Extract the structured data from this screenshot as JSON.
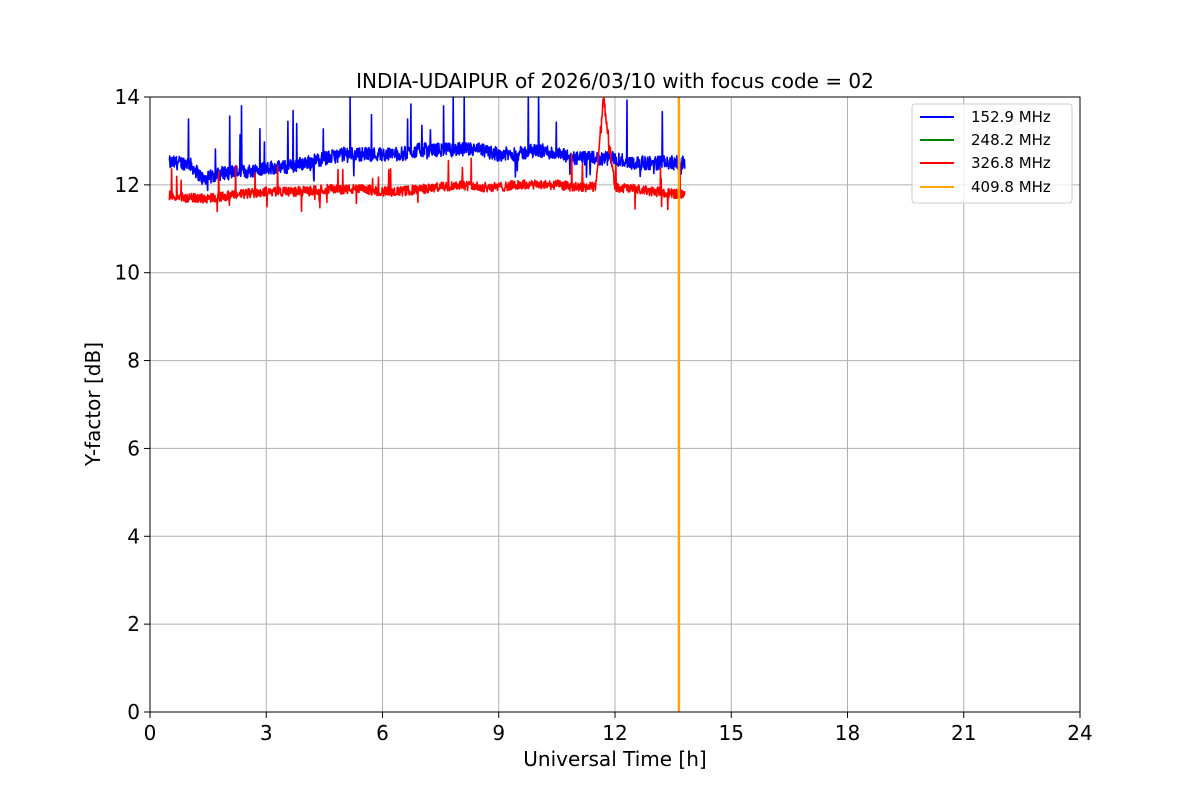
{
  "chart_data": {
    "type": "line",
    "title": "INDIA-UDAIPUR of 2026/03/10 with focus code = 02",
    "xlabel": "Universal Time [h]",
    "ylabel": "Y-factor [dB]",
    "xlim": [
      0,
      24
    ],
    "ylim": [
      0,
      14
    ],
    "xticks": [
      "0",
      "3",
      "6",
      "9",
      "12",
      "15",
      "18",
      "21",
      "24"
    ],
    "yticks": [
      "0",
      "2",
      "4",
      "6",
      "8",
      "10",
      "12",
      "14"
    ],
    "grid": true,
    "legend_position": "top-right",
    "series": [
      {
        "name": "152.9 MHz",
        "color": "#0000ff",
        "x": [
          0.5,
          1.0,
          1.4,
          1.6,
          2.0,
          2.5,
          3.0,
          3.5,
          4.0,
          4.5,
          5.0,
          5.5,
          6.0,
          6.5,
          7.0,
          7.5,
          8.0,
          8.5,
          9.0,
          9.5,
          10.0,
          10.5,
          11.0,
          11.5,
          12.0,
          12.5,
          13.0,
          13.5,
          13.8
        ],
        "y": [
          12.5,
          12.5,
          12.1,
          12.2,
          12.3,
          12.3,
          12.4,
          12.4,
          12.5,
          12.6,
          12.7,
          12.7,
          12.7,
          12.7,
          12.8,
          12.8,
          12.8,
          12.8,
          12.7,
          12.7,
          12.8,
          12.7,
          12.6,
          12.6,
          12.6,
          12.5,
          12.5,
          12.5,
          12.5
        ]
      },
      {
        "name": "248.2 MHz",
        "color": "#008000",
        "x": [],
        "y": []
      },
      {
        "name": "326.8 MHz",
        "color": "#ff0000",
        "x": [
          0.5,
          1.0,
          1.5,
          2.0,
          2.5,
          3.0,
          3.5,
          4.0,
          4.5,
          5.0,
          5.5,
          6.0,
          6.5,
          7.0,
          7.5,
          8.0,
          8.5,
          9.0,
          9.5,
          10.0,
          10.5,
          11.0,
          11.5,
          11.7,
          12.0,
          12.5,
          13.0,
          13.5,
          13.8
        ],
        "y": [
          11.75,
          11.7,
          11.7,
          11.75,
          11.8,
          11.85,
          11.85,
          11.85,
          11.9,
          11.9,
          11.9,
          11.85,
          11.85,
          11.9,
          11.95,
          12.0,
          11.95,
          11.95,
          12.0,
          12.0,
          12.0,
          11.95,
          11.95,
          14.0,
          11.95,
          11.9,
          11.85,
          11.8,
          11.8
        ]
      },
      {
        "name": "409.8 MHz",
        "color": "#ffa500",
        "x": [
          13.65,
          13.65
        ],
        "y": [
          0,
          14
        ]
      }
    ]
  }
}
